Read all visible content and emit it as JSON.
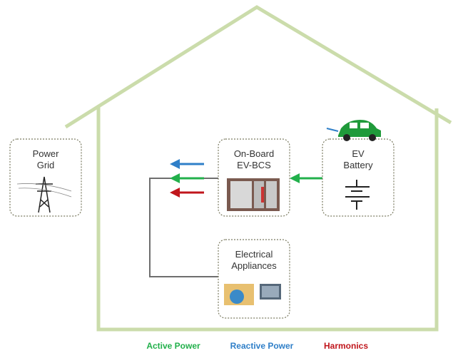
{
  "nodes": [
    {
      "label": [
        "Power",
        "Grid"
      ]
    },
    {
      "label": [
        "On-Board",
        "EV-BCS"
      ]
    },
    {
      "label": [
        "EV",
        "Battery"
      ]
    },
    {
      "label": [
        "Electrical",
        "Appliances"
      ]
    }
  ],
  "legend": [
    {
      "label": "Active Power",
      "color": "#22b04b"
    },
    {
      "label": "Reactive Power",
      "color": "#2f7fc8"
    },
    {
      "label": "Harmonics",
      "color": "#c0161c"
    }
  ]
}
